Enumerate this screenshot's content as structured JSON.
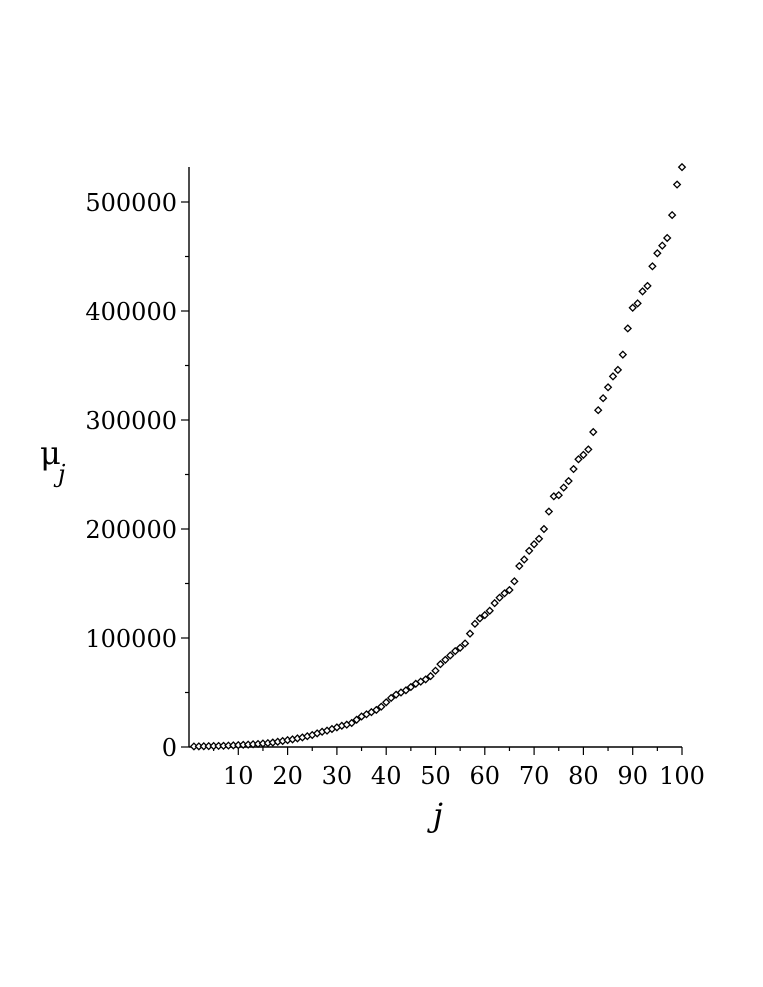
{
  "chart_data": {
    "type": "scatter",
    "title": "",
    "xlabel": "j",
    "ylabel": {
      "main": "μ",
      "sub": "j"
    },
    "xlim": [
      0,
      100
    ],
    "ylim": [
      0,
      530000
    ],
    "grid": false,
    "marker": "diamond-open",
    "colors": {
      "marker": "#000000",
      "axis": "#000000"
    },
    "x_ticks": [
      10,
      20,
      30,
      40,
      50,
      60,
      70,
      80,
      90,
      100
    ],
    "x_tick_labels": [
      "10",
      "20",
      "30",
      "40",
      "50",
      "60",
      "70",
      "80",
      "90",
      "100"
    ],
    "y_ticks": [
      0,
      100000,
      200000,
      300000,
      400000,
      500000
    ],
    "y_tick_labels": [
      "0",
      "100000",
      "200000",
      "300000",
      "400000",
      "500000"
    ],
    "series": [
      {
        "x": [
          1,
          2,
          3,
          4,
          5,
          6,
          7,
          8,
          9,
          10,
          11,
          12,
          13,
          14,
          15,
          16,
          17,
          18,
          19,
          20,
          21,
          22,
          23,
          24,
          25,
          26,
          27,
          28,
          29,
          30,
          31,
          32,
          33,
          34,
          35,
          36,
          37,
          38,
          39,
          40,
          41,
          42,
          43,
          44,
          45,
          46,
          47,
          48,
          49,
          50,
          51,
          52,
          53,
          54,
          55,
          56,
          57,
          58,
          59,
          60,
          61,
          62,
          63,
          64,
          65,
          66,
          67,
          68,
          69,
          70,
          71,
          72,
          73,
          74,
          75,
          76,
          77,
          78,
          79,
          80,
          81,
          82,
          83,
          84,
          85,
          86,
          87,
          88,
          89,
          90,
          91,
          92,
          93,
          94,
          95,
          96,
          97,
          98,
          99,
          100
        ],
        "y": [
          500,
          600,
          700,
          800,
          900,
          1000,
          1100,
          1300,
          1500,
          1700,
          2000,
          2200,
          2500,
          2800,
          3200,
          3600,
          4100,
          4800,
          5500,
          6300,
          7000,
          7900,
          8800,
          9900,
          11000,
          12500,
          14000,
          15000,
          16500,
          18000,
          19500,
          20500,
          22000,
          25000,
          28000,
          30000,
          32000,
          34000,
          37000,
          41000,
          45000,
          48000,
          50000,
          52000,
          55000,
          58000,
          60000,
          62000,
          65000,
          70000,
          76000,
          80000,
          84000,
          88000,
          91000,
          95000,
          104000,
          113000,
          118000,
          121000,
          125000,
          132000,
          137000,
          141000,
          144000,
          152000,
          166000,
          172000,
          180000,
          186000,
          191000,
          200000,
          216000,
          230000,
          231000,
          238000,
          244000,
          255000,
          264000,
          268000,
          273000,
          289000,
          309000,
          320000,
          330000,
          340000,
          346000,
          360000,
          384000,
          403000,
          407000,
          418000,
          423000,
          441000,
          453000,
          460000,
          467000,
          488000,
          516000,
          532000
        ]
      }
    ]
  }
}
